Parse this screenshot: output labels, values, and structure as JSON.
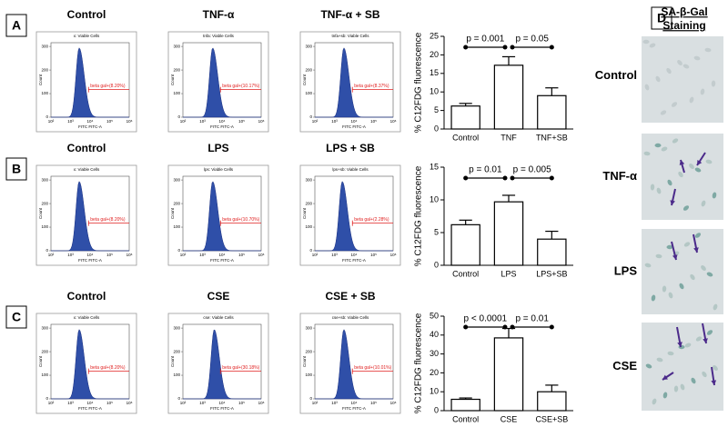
{
  "panel_letters": [
    "A",
    "B",
    "C",
    "D"
  ],
  "flow_cytometry": {
    "xlabel": "FITC FITC-A",
    "ylabel": "Count",
    "xticklabels": [
      "10²",
      "10³",
      "10⁴",
      "10⁵",
      "10⁶"
    ],
    "yticks": [
      0,
      100,
      200,
      300
    ],
    "rows": [
      {
        "panels": [
          {
            "title": "Control",
            "header": "x: Viable Cells",
            "gate": "beta gal+(8.20%)"
          },
          {
            "title": "TNF-α",
            "header": "tnfa: Viable Cells",
            "gate": "beta gal+(10.17%)"
          },
          {
            "title": "TNF-α + SB",
            "header": "tnfa+sb: Viable Cells",
            "gate": "beta gal+(8.37%)"
          }
        ]
      },
      {
        "panels": [
          {
            "title": "Control",
            "header": "x: Viable Cells",
            "gate": "beta gal+(8.20%)"
          },
          {
            "title": "LPS",
            "header": "lps: Viable Cells",
            "gate": "beta gal+(10.70%)"
          },
          {
            "title": "LPS + SB",
            "header": "lps+sb: Viable Cells",
            "gate": "beta gal+(2.28%)"
          }
        ]
      },
      {
        "panels": [
          {
            "title": "Control",
            "header": "x: Viable Cells",
            "gate": "beta gal+(8.20%)"
          },
          {
            "title": "CSE",
            "header": "cse: Viable Cells",
            "gate": "beta gal+(30.18%)"
          },
          {
            "title": "CSE + SB",
            "header": "cse+sb: Viable Cells",
            "gate": "beta gal+(10.01%)"
          }
        ]
      }
    ]
  },
  "chart_data": [
    {
      "type": "bar",
      "ylabel": "% C12FDG fluorescence",
      "categories": [
        "Control",
        "TNF",
        "TNF+SB"
      ],
      "values": [
        6.2,
        17.2,
        9.0
      ],
      "errors": [
        0.7,
        2.3,
        2.1
      ],
      "color": "#ffffff",
      "ylim": [
        0,
        25
      ],
      "yticks": [
        0,
        5,
        10,
        15,
        20,
        25
      ],
      "annotations": [
        "p = 0.001",
        "p = 0.05"
      ]
    },
    {
      "type": "bar",
      "ylabel": "% C12FDG fluorescence",
      "categories": [
        "Control",
        "LPS",
        "LPS+SB"
      ],
      "values": [
        6.2,
        9.7,
        4.0
      ],
      "errors": [
        0.7,
        1.0,
        1.2
      ],
      "color": "#ffffff",
      "ylim": [
        0,
        15
      ],
      "yticks": [
        0,
        5,
        10,
        15
      ],
      "annotations": [
        "p = 0.01",
        "p = 0.005"
      ]
    },
    {
      "type": "bar",
      "ylabel": "% C12FDG fluorescence",
      "categories": [
        "Control",
        "CSE",
        "CSE+SB"
      ],
      "values": [
        6.0,
        38.5,
        10.0
      ],
      "errors": [
        0.7,
        5.0,
        3.5
      ],
      "color": "#ffffff",
      "ylim": [
        0,
        50
      ],
      "yticks": [
        0,
        10,
        20,
        30,
        40,
        50
      ],
      "annotations": [
        "p < 0.0001",
        "p = 0.01"
      ]
    }
  ],
  "staining": {
    "title": [
      "SA-β-Gal",
      "Staining"
    ],
    "labels": [
      "Control",
      "TNF-α",
      "LPS",
      "CSE"
    ]
  }
}
